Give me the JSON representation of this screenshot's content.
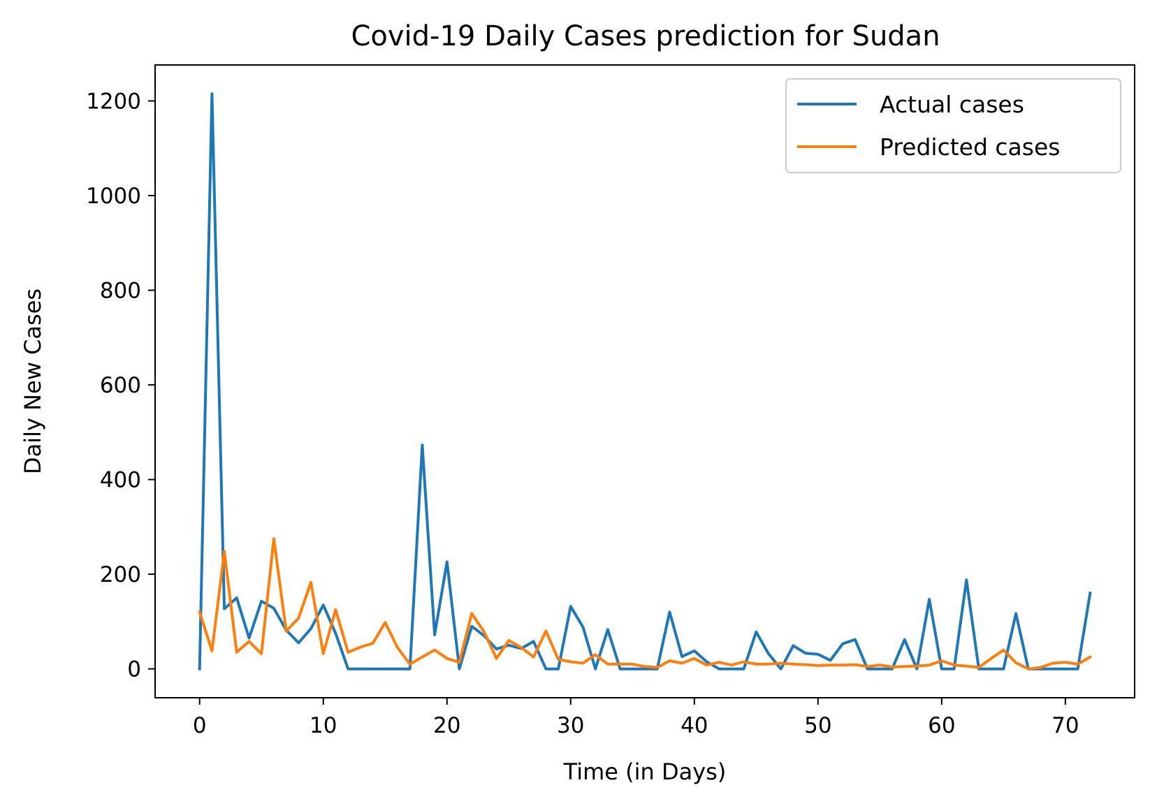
{
  "chart_data": {
    "type": "line",
    "title": "Covid-19 Daily Cases prediction for Sudan",
    "xlabel": "Time (in Days)",
    "ylabel": "Daily New Cases",
    "xlim": [
      -3.6,
      75.6
    ],
    "ylim": [
      -61,
      1276
    ],
    "xticks": [
      0,
      10,
      20,
      30,
      40,
      50,
      60,
      70
    ],
    "yticks": [
      0,
      200,
      400,
      600,
      800,
      1000,
      1200
    ],
    "grid": false,
    "legend_position": "top-right",
    "x": [
      0,
      1,
      2,
      3,
      4,
      5,
      6,
      7,
      8,
      9,
      10,
      11,
      12,
      13,
      14,
      15,
      16,
      17,
      18,
      19,
      20,
      21,
      22,
      23,
      24,
      25,
      26,
      27,
      28,
      29,
      30,
      31,
      32,
      33,
      34,
      35,
      36,
      37,
      38,
      39,
      40,
      41,
      42,
      43,
      44,
      45,
      46,
      47,
      48,
      49,
      50,
      51,
      52,
      53,
      54,
      55,
      56,
      57,
      58,
      59,
      60,
      61,
      62,
      63,
      64,
      65,
      66,
      67,
      68,
      69,
      70,
      71,
      72
    ],
    "series": [
      {
        "name": "Actual cases",
        "color": "#1f77b4",
        "values": [
          0,
          1215,
          127,
          150,
          65,
          143,
          128,
          82,
          55,
          85,
          135,
          75,
          0,
          0,
          0,
          0,
          0,
          0,
          473,
          72,
          226,
          0,
          90,
          70,
          42,
          50,
          43,
          58,
          0,
          0,
          132,
          88,
          0,
          83,
          0,
          0,
          0,
          0,
          120,
          26,
          38,
          15,
          0,
          0,
          0,
          78,
          32,
          0,
          49,
          33,
          31,
          18,
          53,
          62,
          0,
          0,
          0,
          62,
          0,
          147,
          0,
          0,
          188,
          0,
          0,
          0,
          117,
          0,
          0,
          0,
          0,
          0,
          160
        ]
      },
      {
        "name": "Predicted cases",
        "color": "#ff7f0e",
        "values": [
          120,
          38,
          248,
          35,
          58,
          32,
          275,
          80,
          107,
          183,
          32,
          125,
          35,
          46,
          54,
          98,
          45,
          10,
          25,
          40,
          22,
          14,
          117,
          78,
          22,
          60,
          45,
          25,
          80,
          20,
          15,
          12,
          30,
          10,
          10,
          10,
          5,
          3,
          17,
          12,
          22,
          8,
          14,
          8,
          15,
          10,
          10,
          12,
          10,
          9,
          7,
          8,
          8,
          9,
          5,
          8,
          4,
          5,
          6,
          8,
          17,
          8,
          6,
          3,
          22,
          40,
          13,
          0,
          3,
          12,
          14,
          10,
          25
        ]
      }
    ]
  }
}
